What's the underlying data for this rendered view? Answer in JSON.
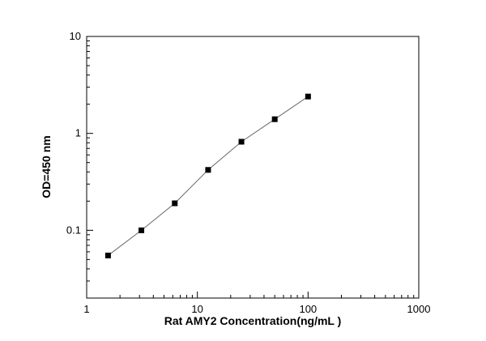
{
  "chart_data": {
    "type": "line",
    "title": "",
    "xlabel": "Rat AMY2 Concentration(ng/mL )",
    "ylabel": "OD=450 nm",
    "x": [
      1.56,
      3.12,
      6.25,
      12.5,
      25,
      50,
      100
    ],
    "y": [
      0.055,
      0.1,
      0.19,
      0.42,
      0.82,
      1.4,
      2.4
    ],
    "xscale": "log",
    "yscale": "log",
    "xlim": [
      1,
      1000
    ],
    "ylim": [
      0.02,
      10
    ],
    "x_ticks": [
      1,
      10,
      100,
      1000
    ],
    "x_tick_labels": [
      "1",
      "10",
      "100",
      "1000"
    ],
    "y_ticks": [
      0.1,
      1,
      10
    ],
    "y_tick_labels": [
      "0.1",
      "1",
      "10"
    ],
    "marker": "filled-square",
    "marker_color": "#000000",
    "line_color": "#666666",
    "frame_color": "#000000",
    "background": "#ffffff",
    "grid": false,
    "legend": false
  }
}
